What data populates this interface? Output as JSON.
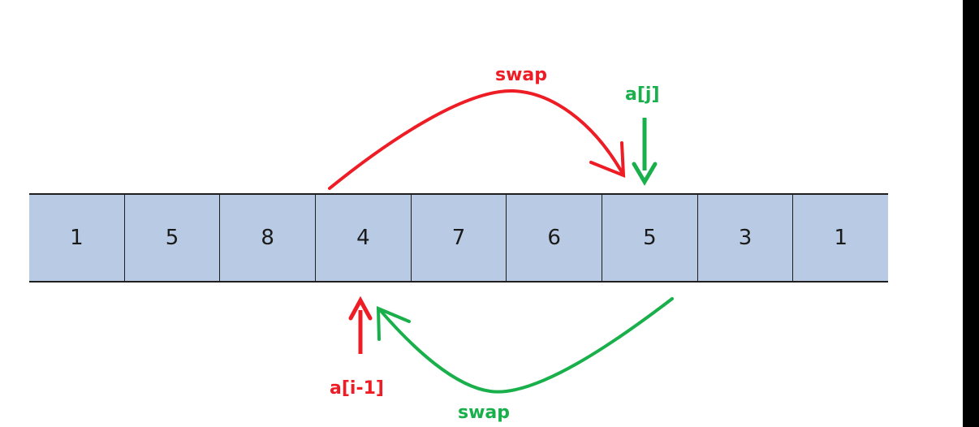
{
  "array": {
    "values": [
      "1",
      "5",
      "8",
      "4",
      "7",
      "6",
      "5",
      "3",
      "1"
    ]
  },
  "labels": {
    "swap_top": "swap",
    "swap_bottom": "swap",
    "pointer_j": "a[j]",
    "pointer_i_minus_1": "a[i-1]"
  },
  "colors": {
    "cell_fill": "#b9cbe4",
    "red_accent": "#ee1c24",
    "green_accent": "#19b04b"
  }
}
